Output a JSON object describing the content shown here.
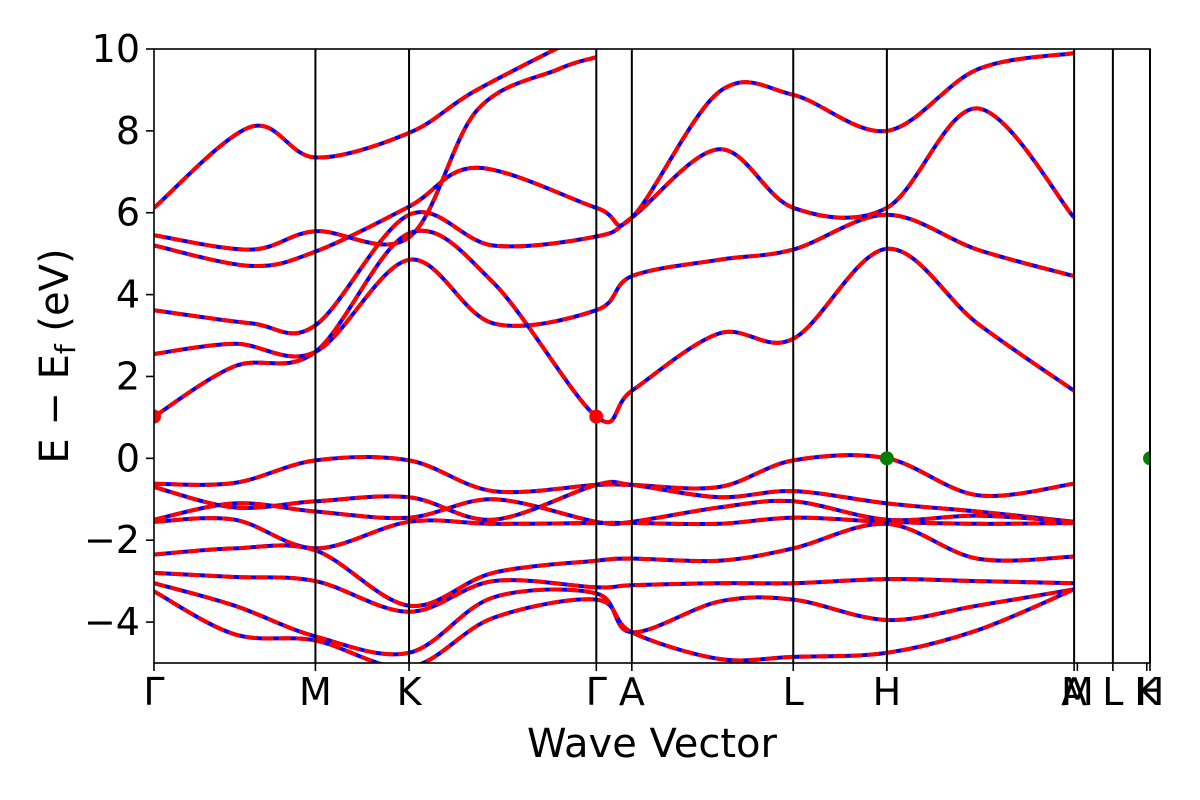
{
  "chart_data": {
    "type": "line",
    "title": "",
    "xlabel": "Wave Vector",
    "ylabel": "E − E_f (eV)",
    "ylabel_main": "E − E",
    "ylabel_sub": "f",
    "ylabel_tail": " (eV)",
    "ylim": [
      -5,
      10
    ],
    "yticks": [
      -4,
      -2,
      0,
      2,
      4,
      6,
      8,
      10
    ],
    "ytick_labels": [
      "−4",
      "−2",
      "0",
      "2",
      "4",
      "6",
      "8",
      "10"
    ],
    "xlim": [
      0,
      6.17
    ],
    "grid": false,
    "legend": "none",
    "kpoints": [
      {
        "label": "Γ",
        "x": 0.0
      },
      {
        "label": "M",
        "x": 1.0
      },
      {
        "label": "K",
        "x": 1.58
      },
      {
        "label": "Γ",
        "x": 2.74
      },
      {
        "label": "A",
        "x": 2.96
      },
      {
        "label": "L",
        "x": 3.96
      },
      {
        "label": "H",
        "x": 4.54
      },
      {
        "label": "A",
        "x": 5.7
      },
      {
        "label": "M",
        "x": 5.72
      },
      {
        "label": "L",
        "x": 5.94
      },
      {
        "label": "K",
        "x": 6.15
      },
      {
        "label": "H",
        "x": 6.17
      }
    ],
    "kpoint_lines_x": [
      1.0,
      1.58,
      2.74,
      2.96,
      3.96,
      4.54,
      5.7,
      5.94,
      6.17
    ],
    "colors": {
      "band_up": "#ff0000",
      "band_down": "#0000ff",
      "vline": "#000000",
      "cbm": "#ff0000",
      "vbm": "#008000"
    },
    "series": [
      {
        "values": [
          [
            0,
            1.02
          ],
          [
            0.5,
            2.25
          ],
          [
            1.0,
            2.6
          ],
          [
            1.58,
            5.5
          ],
          [
            2.1,
            4.3
          ],
          [
            2.74,
            1.02
          ],
          [
            2.96,
            1.65
          ],
          [
            3.5,
            3.05
          ],
          [
            3.96,
            2.92
          ],
          [
            4.54,
            5.12
          ],
          [
            5.1,
            3.3
          ],
          [
            5.7,
            1.65
          ]
        ]
      },
      {
        "values": [
          [
            0,
            2.55
          ],
          [
            0.5,
            2.8
          ],
          [
            1.0,
            2.6
          ],
          [
            1.58,
            4.85
          ],
          [
            2.1,
            3.3
          ],
          [
            2.74,
            3.62
          ],
          [
            2.96,
            4.45
          ],
          [
            3.5,
            4.85
          ],
          [
            3.96,
            5.1
          ],
          [
            4.54,
            5.95
          ],
          [
            5.1,
            5.1
          ],
          [
            5.7,
            4.45
          ]
        ]
      },
      {
        "values": [
          [
            0,
            3.62
          ],
          [
            0.6,
            3.3
          ],
          [
            1.0,
            3.25
          ],
          [
            1.58,
            5.95
          ],
          [
            2.1,
            5.2
          ],
          [
            2.74,
            5.42
          ],
          [
            2.96,
            5.88
          ],
          [
            3.5,
            7.55
          ],
          [
            3.96,
            6.12
          ],
          [
            4.54,
            6.12
          ],
          [
            5.1,
            8.55
          ],
          [
            5.7,
            5.88
          ]
        ]
      },
      {
        "values": [
          [
            0,
            5.2
          ],
          [
            0.6,
            4.7
          ],
          [
            1.0,
            5.05
          ],
          [
            1.58,
            6.15
          ],
          [
            2.0,
            7.1
          ],
          [
            2.74,
            6.12
          ],
          [
            2.96,
            5.88
          ],
          [
            3.5,
            8.95
          ],
          [
            3.96,
            8.88
          ],
          [
            4.54,
            8.0
          ],
          [
            5.1,
            9.5
          ],
          [
            5.7,
            9.9
          ]
        ]
      },
      {
        "values": [
          [
            0,
            5.45
          ],
          [
            0.6,
            5.1
          ],
          [
            1.0,
            5.55
          ],
          [
            1.58,
            5.4
          ],
          [
            2.0,
            8.5
          ],
          [
            2.5,
            9.5
          ],
          [
            2.74,
            9.8
          ]
        ]
      },
      {
        "values": [
          [
            0,
            6.12
          ],
          [
            0.6,
            8.1
          ],
          [
            1.0,
            7.35
          ],
          [
            1.58,
            7.95
          ],
          [
            2.0,
            9.0
          ],
          [
            2.74,
            10.5
          ]
        ]
      },
      {
        "values": [
          [
            0,
            -0.62
          ],
          [
            0.5,
            -0.6
          ],
          [
            1.0,
            -0.05
          ],
          [
            1.58,
            -0.05
          ],
          [
            2.1,
            -0.8
          ],
          [
            2.74,
            -0.65
          ],
          [
            2.96,
            -0.65
          ],
          [
            3.5,
            -0.7
          ],
          [
            3.96,
            -0.05
          ],
          [
            4.54,
            0.0
          ],
          [
            5.1,
            -0.9
          ],
          [
            5.7,
            -0.62
          ]
        ]
      },
      {
        "values": [
          [
            0,
            -0.7
          ],
          [
            0.5,
            -1.2
          ],
          [
            1.0,
            -1.05
          ],
          [
            1.58,
            -0.95
          ],
          [
            2.1,
            -1.5
          ],
          [
            2.74,
            -0.65
          ],
          [
            2.96,
            -0.65
          ],
          [
            3.5,
            -0.95
          ],
          [
            3.96,
            -0.8
          ],
          [
            4.54,
            -1.1
          ],
          [
            5.1,
            -1.3
          ],
          [
            5.7,
            -1.55
          ]
        ]
      },
      {
        "values": [
          [
            0,
            -1.5
          ],
          [
            0.5,
            -1.1
          ],
          [
            1.0,
            -1.3
          ],
          [
            1.58,
            -1.45
          ],
          [
            2.1,
            -1.0
          ],
          [
            2.74,
            -1.55
          ],
          [
            2.96,
            -1.55
          ],
          [
            3.5,
            -1.2
          ],
          [
            3.96,
            -1.05
          ],
          [
            4.54,
            -1.5
          ],
          [
            5.1,
            -1.4
          ],
          [
            5.7,
            -1.55
          ]
        ]
      },
      {
        "values": [
          [
            0,
            -1.55
          ],
          [
            0.5,
            -1.5
          ],
          [
            1.0,
            -2.2
          ],
          [
            1.58,
            -1.55
          ],
          [
            2.1,
            -1.6
          ],
          [
            2.74,
            -1.58
          ],
          [
            2.96,
            -1.58
          ],
          [
            3.5,
            -1.6
          ],
          [
            3.96,
            -1.45
          ],
          [
            4.54,
            -1.55
          ],
          [
            5.1,
            -1.6
          ],
          [
            5.7,
            -1.58
          ]
        ]
      },
      {
        "values": [
          [
            0,
            -2.35
          ],
          [
            0.5,
            -2.2
          ],
          [
            1.0,
            -2.25
          ],
          [
            1.58,
            -3.6
          ],
          [
            2.1,
            -2.8
          ],
          [
            2.74,
            -2.5
          ],
          [
            2.96,
            -2.45
          ],
          [
            3.5,
            -2.5
          ],
          [
            3.96,
            -2.2
          ],
          [
            4.54,
            -1.6
          ],
          [
            5.1,
            -2.45
          ],
          [
            5.7,
            -2.4
          ]
        ]
      },
      {
        "values": [
          [
            0,
            -2.8
          ],
          [
            0.5,
            -2.9
          ],
          [
            1.0,
            -3.0
          ],
          [
            1.58,
            -3.75
          ],
          [
            2.1,
            -3.0
          ],
          [
            2.74,
            -3.15
          ],
          [
            2.96,
            -3.1
          ],
          [
            3.5,
            -3.05
          ],
          [
            3.96,
            -3.05
          ],
          [
            4.54,
            -2.95
          ],
          [
            5.1,
            -3.0
          ],
          [
            5.7,
            -3.05
          ]
        ]
      },
      {
        "values": [
          [
            0,
            -3.05
          ],
          [
            0.5,
            -3.6
          ],
          [
            1.0,
            -4.35
          ],
          [
            1.58,
            -4.75
          ],
          [
            2.1,
            -3.4
          ],
          [
            2.74,
            -3.3
          ],
          [
            2.96,
            -4.25
          ],
          [
            3.5,
            -3.5
          ],
          [
            3.96,
            -3.45
          ],
          [
            4.54,
            -3.95
          ],
          [
            5.1,
            -3.6
          ],
          [
            5.7,
            -3.2
          ]
        ]
      },
      {
        "values": [
          [
            0,
            -3.25
          ],
          [
            0.5,
            -4.3
          ],
          [
            1.0,
            -4.45
          ],
          [
            1.58,
            -5.1
          ],
          [
            2.1,
            -3.9
          ],
          [
            2.74,
            -3.45
          ],
          [
            2.96,
            -4.25
          ],
          [
            3.5,
            -4.9
          ],
          [
            3.96,
            -4.85
          ],
          [
            4.54,
            -4.75
          ],
          [
            5.1,
            -4.2
          ],
          [
            5.7,
            -3.2
          ]
        ]
      }
    ],
    "cbm": {
      "points": [
        [
          0,
          1.02
        ],
        [
          2.74,
          1.02
        ]
      ]
    },
    "vbm": {
      "points": [
        [
          4.54,
          0.0
        ],
        [
          6.17,
          0.0
        ]
      ]
    }
  }
}
